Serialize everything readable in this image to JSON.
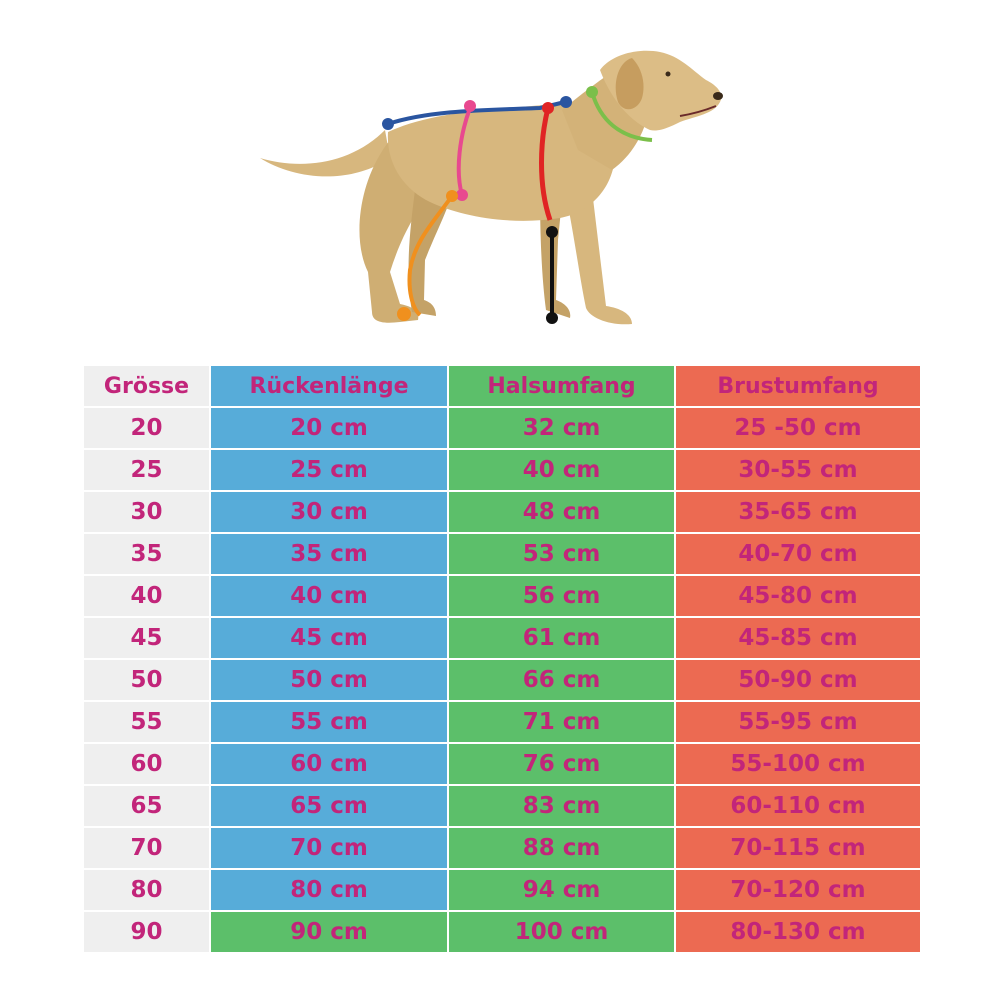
{
  "colors": {
    "text": "#c2257a",
    "size_col": "#efefef",
    "back_col": "#57acd9",
    "neck_col": "#5cbf6a",
    "chest_col": "#ec6a52",
    "dog_fur": "#d7b77e",
    "marker_back": "#2a55a0",
    "marker_girth": "#e8498f",
    "marker_chest": "#e02424",
    "marker_neck": "#7bbf4a",
    "marker_leg": "#f0901e",
    "marker_height": "#111111"
  },
  "illustration": {
    "icon": "dog-measurement-diagram"
  },
  "table": {
    "headers": [
      "Grösse",
      "Rückenlänge",
      "Halsumfang",
      "Brustumfang"
    ],
    "rows": [
      [
        "20",
        "20 cm",
        "32 cm",
        "25 -50 cm"
      ],
      [
        "25",
        "25 cm",
        "40 cm",
        "30-55 cm"
      ],
      [
        "30",
        "30 cm",
        "48 cm",
        "35-65 cm"
      ],
      [
        "35",
        "35 cm",
        "53 cm",
        "40-70 cm"
      ],
      [
        "40",
        "40 cm",
        "56 cm",
        "45-80 cm"
      ],
      [
        "45",
        "45 cm",
        "61 cm",
        "45-85 cm"
      ],
      [
        "50",
        "50 cm",
        "66 cm",
        "50-90 cm"
      ],
      [
        "55",
        "55 cm",
        "71 cm",
        "55-95 cm"
      ],
      [
        "60",
        "60 cm",
        "76 cm",
        "55-100 cm"
      ],
      [
        "65",
        "65 cm",
        "83 cm",
        "60-110 cm"
      ],
      [
        "70",
        "70 cm",
        "88 cm",
        "70-115 cm"
      ],
      [
        "80",
        "80 cm",
        "94 cm",
        "70-120 cm"
      ],
      [
        "90",
        "90 cm",
        "100 cm",
        "80-130 cm"
      ]
    ],
    "highlighted_back_cell": "90 cm"
  }
}
